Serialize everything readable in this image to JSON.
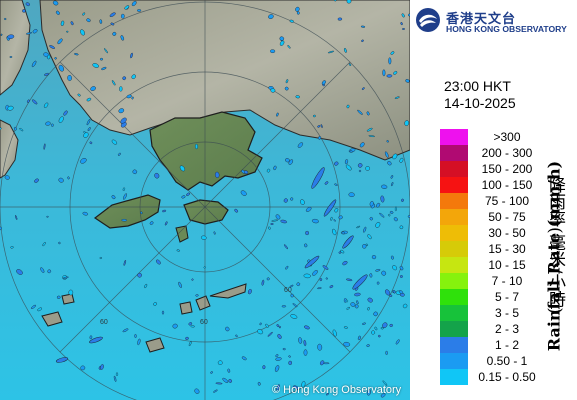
{
  "map": {
    "copyright": "© Hong Kong Observatory",
    "range_ring_labels": [
      "60",
      "60",
      "60"
    ]
  },
  "header": {
    "org_zh": "香港天文台",
    "org_en": "HONG KONG OBSERVATORY",
    "logo_icon": "hko-logo-icon"
  },
  "timestamp": {
    "time": "23:00 HKT",
    "date": "14-10-2025"
  },
  "legend": {
    "axis_label_zh": "降雨率(毫米/小時)",
    "axis_label_en": "Rainfall Rate (mm/h)",
    "items": [
      {
        "range": ">300",
        "color": "#ee11ee"
      },
      {
        "range": "200 - 300",
        "color": "#b00a72"
      },
      {
        "range": "150 - 200",
        "color": "#d50f25"
      },
      {
        "range": "100 - 150",
        "color": "#f61212"
      },
      {
        "range": "75 - 100",
        "color": "#f4790c"
      },
      {
        "range": "50 - 75",
        "color": "#f3a60a"
      },
      {
        "range": "30 - 50",
        "color": "#eebd06"
      },
      {
        "range": "15 - 30",
        "color": "#d6cb08"
      },
      {
        "range": "10 - 15",
        "color": "#c6e611"
      },
      {
        "range": "7 - 10",
        "color": "#86f20d"
      },
      {
        "range": "5 - 7",
        "color": "#2fe10b"
      },
      {
        "range": "3 - 5",
        "color": "#17c23a"
      },
      {
        "range": "2 - 3",
        "color": "#14a34a"
      },
      {
        "range": "1 - 2",
        "color": "#2b7de8"
      },
      {
        "range": "0.50 - 1",
        "color": "#1b9bf2"
      },
      {
        "range": "0.15 - 0.50",
        "color": "#10c6f6"
      }
    ]
  }
}
